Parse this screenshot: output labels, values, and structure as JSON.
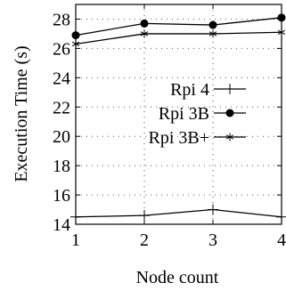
{
  "chart_data": {
    "type": "line",
    "xlabel": "Node count",
    "ylabel": "Execution Time (s)",
    "x": [
      1,
      2,
      3,
      4
    ],
    "xlim": [
      1,
      4
    ],
    "ylim": [
      14,
      29
    ],
    "xticks": [
      "1",
      "2",
      "3",
      "4"
    ],
    "yticks": [
      14,
      16,
      18,
      20,
      22,
      24,
      26,
      28
    ],
    "grid": true,
    "legend_position": "center-right",
    "series": [
      {
        "name": "Rpi 4",
        "marker": "plus",
        "values": [
          14.5,
          14.6,
          15.0,
          14.5
        ]
      },
      {
        "name": "Rpi 3B",
        "marker": "filled-circle",
        "values": [
          26.9,
          27.7,
          27.6,
          28.1
        ]
      },
      {
        "name": "Rpi 3B+",
        "marker": "asterisk",
        "values": [
          26.3,
          27.0,
          27.0,
          27.1
        ]
      }
    ]
  }
}
